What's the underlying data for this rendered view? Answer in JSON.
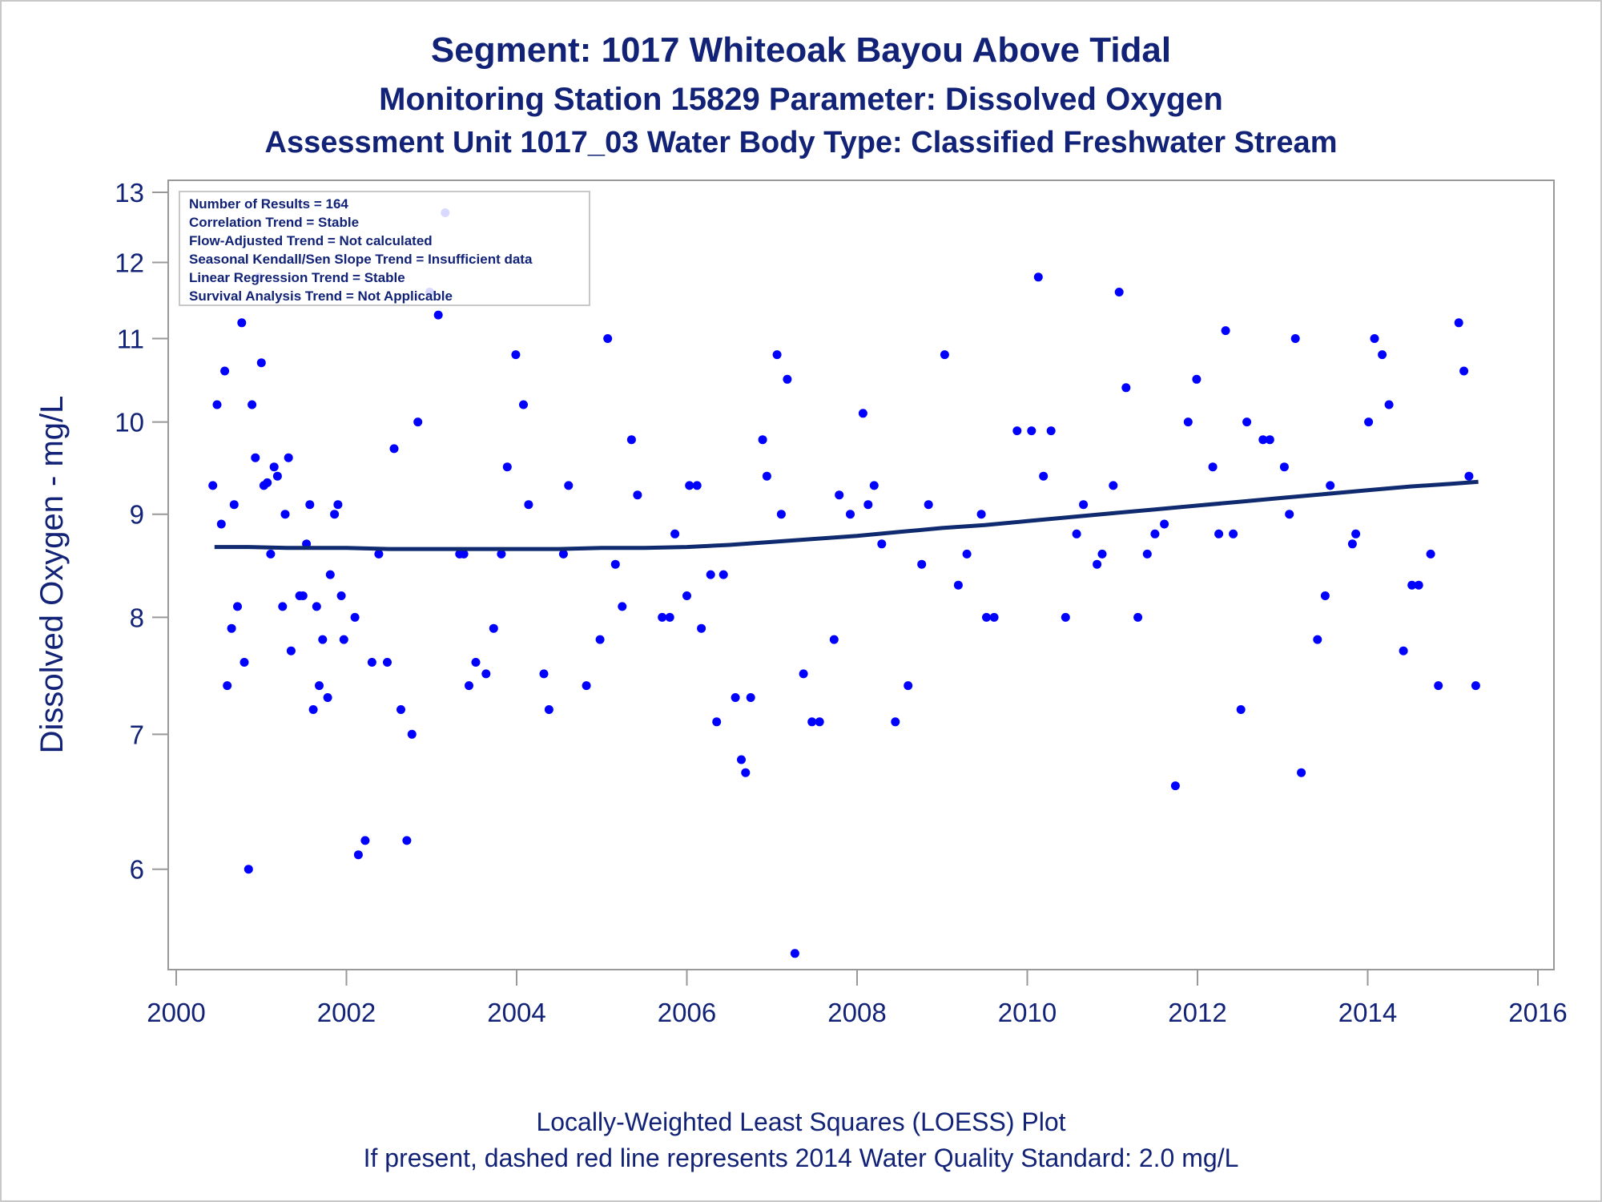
{
  "titles": {
    "line1": "Segment: 1017  Whiteoak Bayou Above Tidal",
    "line2": "Monitoring Station 15829 Parameter: Dissolved Oxygen",
    "line3": "Assessment Unit 1017_03   Water Body Type: Classified Freshwater Stream"
  },
  "footnotes": {
    "line1": "Locally-Weighted Least Squares (LOESS) Plot",
    "line2": "If present, dashed red line represents 2014 Water Quality Standard: 2.0 mg/L"
  },
  "info_box": {
    "lines": [
      "Number of Results = 164",
      "Correlation Trend = Stable",
      "Flow-Adjusted Trend = Not calculated",
      "Seasonal Kendall/Sen Slope Trend = Insufficient data",
      "Linear Regression Trend = Stable",
      "Survival Analysis Trend = Not Applicable"
    ]
  },
  "colors": {
    "points": "#0000ff",
    "loess": "#0f2a6e",
    "text": "#112277",
    "axis": "#999999"
  },
  "chart_data": {
    "type": "scatter",
    "ylabel": "Dissolved Oxygen - mg/L",
    "xlabel": "",
    "y_scale": "log",
    "xlim": [
      2000,
      2016
    ],
    "ylim": [
      5.35,
      13
    ],
    "x_ticks": [
      2000,
      2002,
      2004,
      2006,
      2008,
      2010,
      2012,
      2014,
      2016
    ],
    "y_ticks": [
      6,
      7,
      8,
      9,
      10,
      11,
      12,
      13
    ],
    "grid": false,
    "points": [
      [
        2000.43,
        9.3
      ],
      [
        2000.48,
        10.2
      ],
      [
        2000.53,
        8.9
      ],
      [
        2000.57,
        10.6
      ],
      [
        2000.6,
        7.4
      ],
      [
        2000.65,
        7.9
      ],
      [
        2000.68,
        9.1
      ],
      [
        2000.72,
        8.1
      ],
      [
        2000.77,
        11.2
      ],
      [
        2000.8,
        7.6
      ],
      [
        2000.85,
        6.0
      ],
      [
        2000.89,
        10.2
      ],
      [
        2000.93,
        9.6
      ],
      [
        2000.97,
        11.8
      ],
      [
        2001.0,
        10.7
      ],
      [
        2001.03,
        9.3
      ],
      [
        2001.07,
        9.33
      ],
      [
        2001.11,
        8.6
      ],
      [
        2001.15,
        9.5
      ],
      [
        2001.19,
        9.4
      ],
      [
        2001.25,
        8.1
      ],
      [
        2001.28,
        9.0
      ],
      [
        2001.32,
        9.6
      ],
      [
        2001.35,
        7.7
      ],
      [
        2001.45,
        8.2
      ],
      [
        2001.49,
        8.2
      ],
      [
        2001.53,
        8.7
      ],
      [
        2001.57,
        9.1
      ],
      [
        2001.61,
        7.2
      ],
      [
        2001.65,
        8.1
      ],
      [
        2001.68,
        7.4
      ],
      [
        2001.72,
        7.8
      ],
      [
        2001.78,
        7.3
      ],
      [
        2001.81,
        8.4
      ],
      [
        2001.86,
        9.0
      ],
      [
        2001.9,
        9.1
      ],
      [
        2001.94,
        8.2
      ],
      [
        2001.97,
        7.8
      ],
      [
        2002.1,
        8.0
      ],
      [
        2002.14,
        6.1
      ],
      [
        2002.22,
        6.2
      ],
      [
        2002.3,
        7.6
      ],
      [
        2002.38,
        8.6
      ],
      [
        2002.48,
        7.6
      ],
      [
        2002.56,
        9.7
      ],
      [
        2002.64,
        7.2
      ],
      [
        2002.71,
        6.2
      ],
      [
        2002.77,
        7.0
      ],
      [
        2002.84,
        10.0
      ],
      [
        2002.98,
        11.6
      ],
      [
        2003.08,
        11.3
      ],
      [
        2003.16,
        12.7
      ],
      [
        2003.33,
        8.6
      ],
      [
        2003.38,
        8.6
      ],
      [
        2003.44,
        7.4
      ],
      [
        2003.52,
        7.6
      ],
      [
        2003.64,
        7.5
      ],
      [
        2003.73,
        7.9
      ],
      [
        2003.82,
        8.6
      ],
      [
        2003.89,
        9.5
      ],
      [
        2003.99,
        10.8
      ],
      [
        2004.08,
        10.2
      ],
      [
        2004.14,
        9.1
      ],
      [
        2004.32,
        7.5
      ],
      [
        2004.38,
        7.2
      ],
      [
        2004.55,
        8.6
      ],
      [
        2004.61,
        9.3
      ],
      [
        2004.82,
        7.4
      ],
      [
        2004.98,
        7.8
      ],
      [
        2005.07,
        11.0
      ],
      [
        2005.16,
        8.5
      ],
      [
        2005.24,
        8.1
      ],
      [
        2005.35,
        9.8
      ],
      [
        2005.42,
        9.2
      ],
      [
        2005.71,
        8.0
      ],
      [
        2005.8,
        8.0
      ],
      [
        2005.86,
        8.8
      ],
      [
        2006.0,
        8.2
      ],
      [
        2006.03,
        9.3
      ],
      [
        2006.12,
        9.3
      ],
      [
        2006.17,
        7.9
      ],
      [
        2006.28,
        8.4
      ],
      [
        2006.35,
        7.1
      ],
      [
        2006.43,
        8.4
      ],
      [
        2006.57,
        7.3
      ],
      [
        2006.64,
        6.8
      ],
      [
        2006.69,
        6.7
      ],
      [
        2006.75,
        7.3
      ],
      [
        2006.89,
        9.8
      ],
      [
        2006.94,
        9.4
      ],
      [
        2007.06,
        10.8
      ],
      [
        2007.11,
        9.0
      ],
      [
        2007.18,
        10.5
      ],
      [
        2007.27,
        5.45
      ],
      [
        2007.37,
        7.5
      ],
      [
        2007.47,
        7.1
      ],
      [
        2007.56,
        7.1
      ],
      [
        2007.73,
        7.8
      ],
      [
        2007.79,
        9.2
      ],
      [
        2007.92,
        9.0
      ],
      [
        2008.07,
        10.1
      ],
      [
        2008.13,
        9.1
      ],
      [
        2008.2,
        9.3
      ],
      [
        2008.29,
        8.7
      ],
      [
        2008.45,
        7.1
      ],
      [
        2008.6,
        7.4
      ],
      [
        2008.76,
        8.5
      ],
      [
        2008.84,
        9.1
      ],
      [
        2009.03,
        10.8
      ],
      [
        2009.19,
        8.3
      ],
      [
        2009.29,
        8.6
      ],
      [
        2009.46,
        9.0
      ],
      [
        2009.52,
        8.0
      ],
      [
        2009.61,
        8.0
      ],
      [
        2009.88,
        9.9
      ],
      [
        2010.05,
        9.9
      ],
      [
        2010.13,
        11.8
      ],
      [
        2010.19,
        9.4
      ],
      [
        2010.28,
        9.9
      ],
      [
        2010.45,
        8.0
      ],
      [
        2010.58,
        8.8
      ],
      [
        2010.66,
        9.1
      ],
      [
        2010.82,
        8.5
      ],
      [
        2010.88,
        8.6
      ],
      [
        2011.01,
        9.3
      ],
      [
        2011.08,
        11.6
      ],
      [
        2011.16,
        10.4
      ],
      [
        2011.3,
        8.0
      ],
      [
        2011.41,
        8.6
      ],
      [
        2011.5,
        8.8
      ],
      [
        2011.61,
        8.9
      ],
      [
        2011.74,
        6.6
      ],
      [
        2011.89,
        10.0
      ],
      [
        2011.99,
        10.5
      ],
      [
        2012.18,
        9.5
      ],
      [
        2012.25,
        8.8
      ],
      [
        2012.33,
        11.1
      ],
      [
        2012.42,
        8.8
      ],
      [
        2012.51,
        7.2
      ],
      [
        2012.58,
        10.0
      ],
      [
        2012.77,
        9.8
      ],
      [
        2012.85,
        9.8
      ],
      [
        2013.02,
        9.5
      ],
      [
        2013.08,
        9.0
      ],
      [
        2013.15,
        11.0
      ],
      [
        2013.22,
        6.7
      ],
      [
        2013.41,
        7.8
      ],
      [
        2013.5,
        8.2
      ],
      [
        2013.56,
        9.3
      ],
      [
        2013.82,
        8.7
      ],
      [
        2013.86,
        8.8
      ],
      [
        2014.01,
        10.0
      ],
      [
        2014.08,
        11.0
      ],
      [
        2014.17,
        10.8
      ],
      [
        2014.25,
        10.2
      ],
      [
        2014.42,
        7.7
      ],
      [
        2014.52,
        8.3
      ],
      [
        2014.6,
        8.3
      ],
      [
        2014.74,
        8.6
      ],
      [
        2014.83,
        7.4
      ],
      [
        2015.07,
        11.2
      ],
      [
        2015.13,
        10.6
      ],
      [
        2015.19,
        9.4
      ],
      [
        2015.27,
        7.4
      ]
    ],
    "loess": [
      [
        2000.45,
        8.67
      ],
      [
        2000.85,
        8.67
      ],
      [
        2001.3,
        8.66
      ],
      [
        2002.0,
        8.66
      ],
      [
        2002.5,
        8.65
      ],
      [
        2003.0,
        8.65
      ],
      [
        2003.5,
        8.65
      ],
      [
        2004.0,
        8.65
      ],
      [
        2004.5,
        8.65
      ],
      [
        2005.0,
        8.66
      ],
      [
        2005.5,
        8.66
      ],
      [
        2006.0,
        8.67
      ],
      [
        2006.5,
        8.69
      ],
      [
        2007.0,
        8.72
      ],
      [
        2007.5,
        8.75
      ],
      [
        2008.0,
        8.78
      ],
      [
        2008.5,
        8.82
      ],
      [
        2009.0,
        8.86
      ],
      [
        2009.5,
        8.89
      ],
      [
        2010.0,
        8.93
      ],
      [
        2010.5,
        8.97
      ],
      [
        2011.0,
        9.01
      ],
      [
        2011.5,
        9.05
      ],
      [
        2012.0,
        9.09
      ],
      [
        2012.5,
        9.13
      ],
      [
        2013.0,
        9.17
      ],
      [
        2013.5,
        9.21
      ],
      [
        2014.0,
        9.25
      ],
      [
        2014.5,
        9.29
      ],
      [
        2015.0,
        9.32
      ],
      [
        2015.3,
        9.34
      ]
    ]
  }
}
